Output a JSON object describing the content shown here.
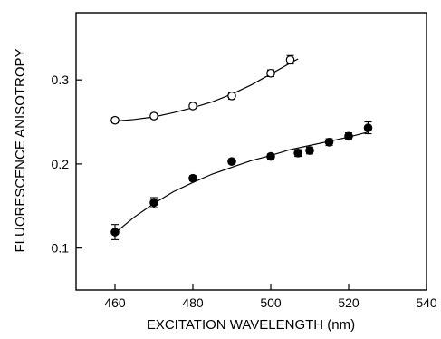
{
  "chart_data": {
    "type": "scatter",
    "xlabel": "EXCITATION WAVELENGTH (nm)",
    "ylabel": "FLUORESCENCE ANISOTROPY",
    "xlim": [
      450,
      540
    ],
    "ylim": [
      0.05,
      0.38
    ],
    "xticks": [
      460,
      480,
      500,
      520,
      540
    ],
    "xtick_labels": [
      "460",
      "480",
      "500",
      "520",
      "540"
    ],
    "yticks": [
      0.1,
      0.2,
      0.3
    ],
    "ytick_labels": [
      "0.1",
      "0.2",
      "0.3"
    ],
    "grid": false,
    "series": [
      {
        "marker": "open-circle",
        "x": [
          460,
          470,
          480,
          490,
          500,
          505
        ],
        "y": [
          0.252,
          0.257,
          0.269,
          0.281,
          0.308,
          0.324
        ],
        "err": [
          0.003,
          0.003,
          0.003,
          0.004,
          0.004,
          0.005
        ],
        "fit": {
          "x": [
            460,
            465,
            470,
            475,
            480,
            485,
            490,
            495,
            500,
            505,
            507
          ],
          "y": [
            0.251,
            0.253,
            0.256,
            0.261,
            0.267,
            0.274,
            0.283,
            0.294,
            0.307,
            0.32,
            0.325
          ]
        }
      },
      {
        "marker": "filled-circle",
        "x": [
          460,
          470,
          480,
          490,
          500,
          507,
          510,
          515,
          520,
          525
        ],
        "y": [
          0.119,
          0.154,
          0.183,
          0.203,
          0.209,
          0.213,
          0.216,
          0.226,
          0.233,
          0.243
        ],
        "err": [
          0.009,
          0.006,
          0.003,
          0.003,
          0.003,
          0.004,
          0.004,
          0.004,
          0.004,
          0.007
        ],
        "fit": {
          "x": [
            460,
            465,
            470,
            475,
            480,
            485,
            490,
            495,
            500,
            505,
            510,
            515,
            520,
            525
          ],
          "y": [
            0.118,
            0.137,
            0.153,
            0.167,
            0.178,
            0.188,
            0.196,
            0.204,
            0.21,
            0.217,
            0.222,
            0.227,
            0.232,
            0.238
          ]
        }
      }
    ]
  }
}
